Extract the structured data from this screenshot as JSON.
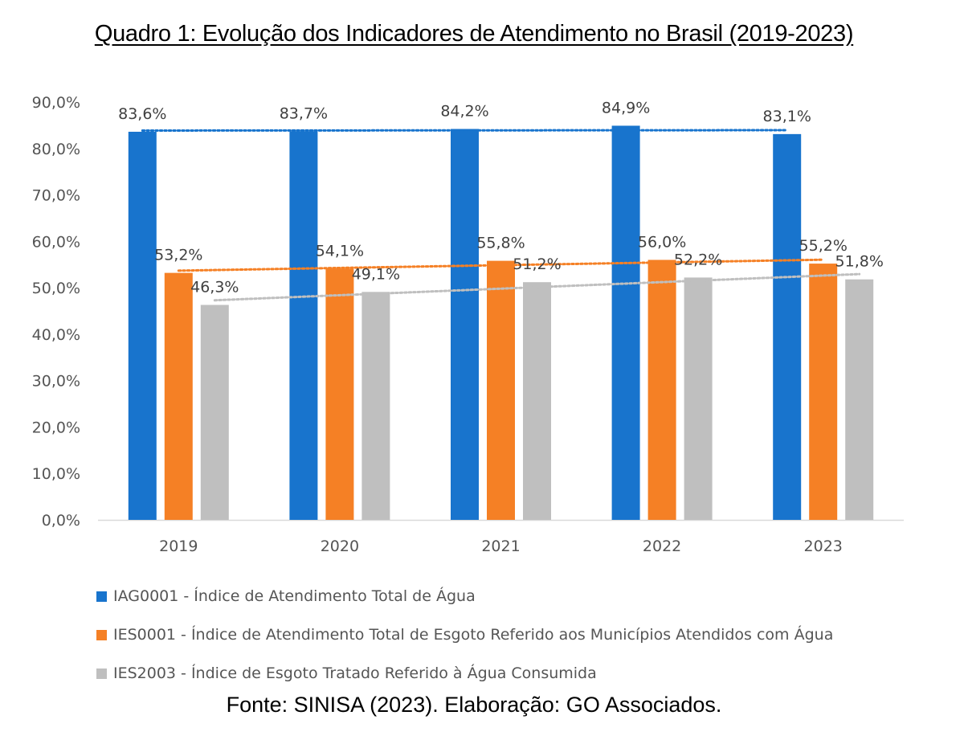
{
  "title": "Quadro 1: Evolução dos Indicadores de Atendimento no Brasil (2019-2023)",
  "source": "Fonte: SINISA (2023). Elaboração: GO Associados.",
  "chart_data": {
    "type": "bar",
    "categories": [
      "2019",
      "2020",
      "2021",
      "2022",
      "2023"
    ],
    "ylim": [
      0,
      90
    ],
    "yticks": [
      "0,0%",
      "10,0%",
      "20,0%",
      "30,0%",
      "40,0%",
      "50,0%",
      "60,0%",
      "70,0%",
      "80,0%",
      "90,0%"
    ],
    "grid": false,
    "legend_position": "bottom-left",
    "series": [
      {
        "name": "IAG0001 - Índice de Atendimento Total de Água",
        "color": "#1874CD",
        "values": [
          83.6,
          83.7,
          84.2,
          84.9,
          83.1
        ],
        "labels": [
          "83,6%",
          "83,7%",
          "84,2%",
          "84,9%",
          "83,1%"
        ],
        "trendline": true
      },
      {
        "name": "IES0001 - Índice de Atendimento Total de Esgoto Referido aos Municípios Atendidos com Água",
        "color": "#F58025",
        "values": [
          53.2,
          54.1,
          55.8,
          56.0,
          55.2
        ],
        "labels": [
          "53,2%",
          "54,1%",
          "55,8%",
          "56,0%",
          "55,2%"
        ],
        "trendline": true
      },
      {
        "name": "IES2003 - Índice de Esgoto Tratado Referido à Água Consumida",
        "color": "#BFBFBF",
        "values": [
          46.3,
          49.1,
          51.2,
          52.2,
          51.8
        ],
        "labels": [
          "46,3%",
          "49,1%",
          "51,2%",
          "52,2%",
          "51,8%"
        ],
        "trendline": true
      }
    ]
  }
}
